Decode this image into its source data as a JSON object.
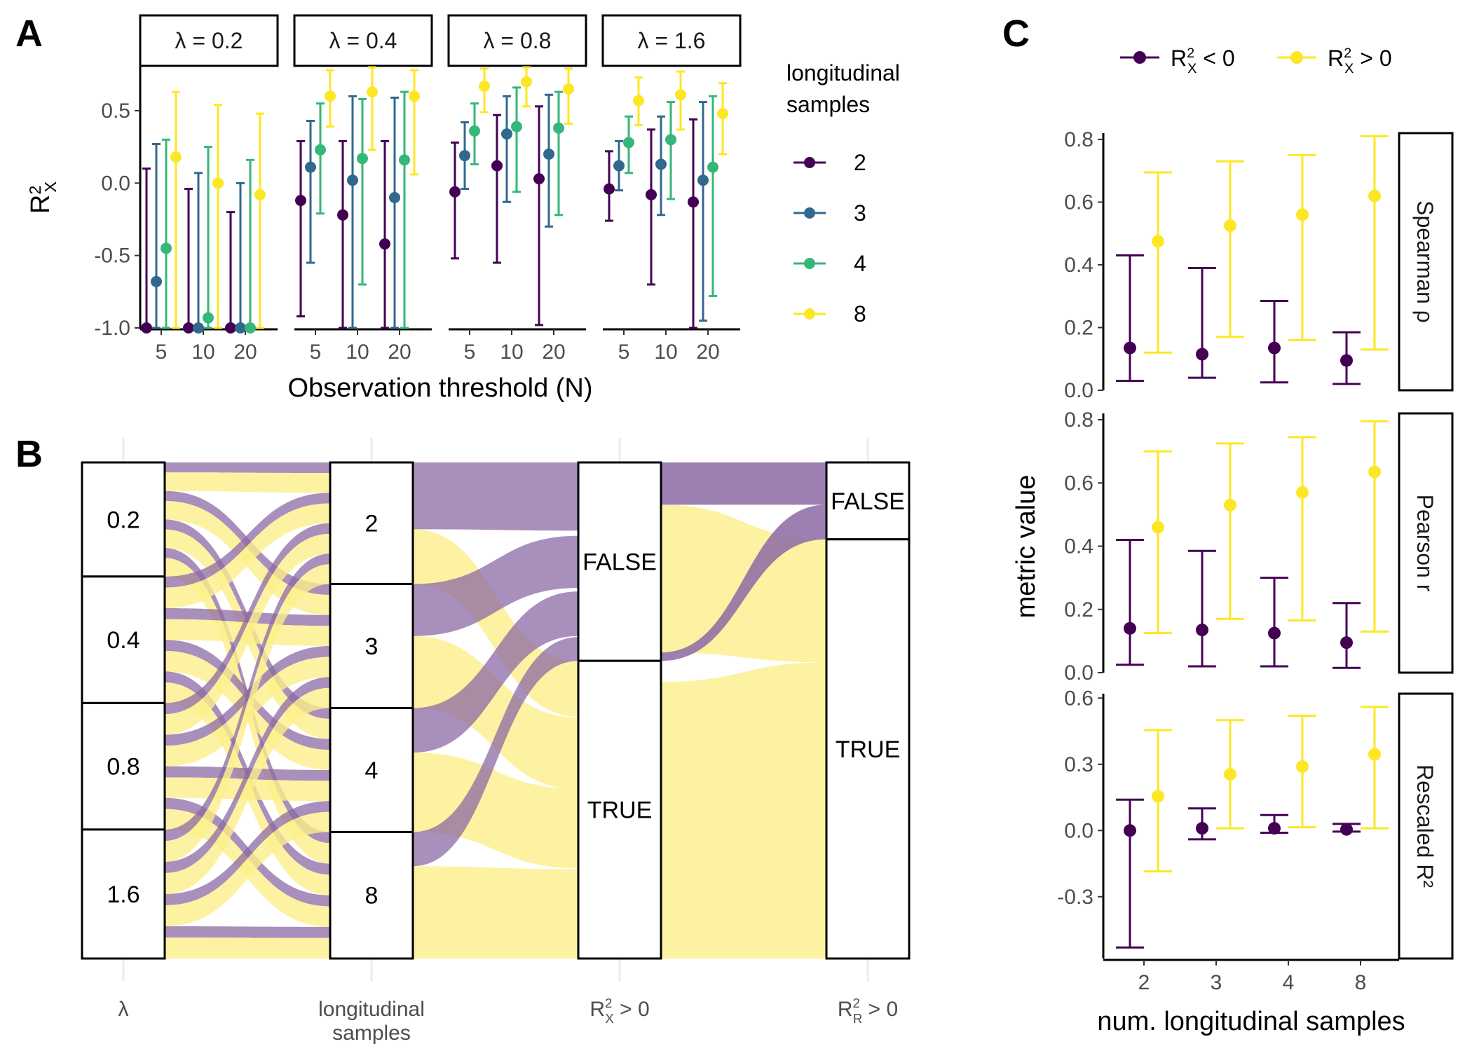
{
  "colors": {
    "n2": "#440154",
    "n3": "#31688e",
    "n4": "#35b779",
    "n8": "#fde725",
    "neg": "#440154",
    "pos": "#fde725",
    "flow_false": "#8c6aa4",
    "flow_true": "#fdef8a"
  },
  "panel_letters": {
    "a": "A",
    "b": "B",
    "c": "C"
  },
  "chart_data": [
    {
      "type": "scatter",
      "panel": "A",
      "facets": [
        "λ = 0.2",
        "λ = 0.4",
        "λ = 0.8",
        "λ = 1.6"
      ],
      "x_categories": [
        "5",
        "10",
        "20"
      ],
      "xlabel": "Observation threshold (N)",
      "ylabel": "R²_X",
      "ylim": [
        -1.0,
        0.8
      ],
      "yticks": [
        -1.0,
        -0.5,
        0.0,
        0.5
      ],
      "ytick_labels": [
        "-1.0",
        "-0.5",
        "0.0",
        "0.5"
      ],
      "legend": {
        "title_line1": "longitudinal",
        "title_line2": "samples",
        "position": "right"
      },
      "series": [
        {
          "name": "2",
          "color_key": "n2",
          "points": [
            {
              "facet": 0,
              "x": 0,
              "y": -1.0,
              "lo": -1.0,
              "hi": 0.1
            },
            {
              "facet": 0,
              "x": 1,
              "y": -1.0,
              "lo": -1.0,
              "hi": -0.04
            },
            {
              "facet": 0,
              "x": 2,
              "y": -1.0,
              "lo": -1.0,
              "hi": -0.2
            },
            {
              "facet": 1,
              "x": 0,
              "y": -0.12,
              "lo": -0.92,
              "hi": 0.29
            },
            {
              "facet": 1,
              "x": 1,
              "y": -0.22,
              "lo": -1.0,
              "hi": 0.29
            },
            {
              "facet": 1,
              "x": 2,
              "y": -0.42,
              "lo": -1.0,
              "hi": 0.29
            },
            {
              "facet": 2,
              "x": 0,
              "y": -0.06,
              "lo": -0.52,
              "hi": 0.28
            },
            {
              "facet": 2,
              "x": 1,
              "y": 0.12,
              "lo": -0.55,
              "hi": 0.47
            },
            {
              "facet": 2,
              "x": 2,
              "y": 0.03,
              "lo": -0.98,
              "hi": 0.53
            },
            {
              "facet": 3,
              "x": 0,
              "y": -0.04,
              "lo": -0.26,
              "hi": 0.22
            },
            {
              "facet": 3,
              "x": 1,
              "y": -0.08,
              "lo": -0.7,
              "hi": 0.37
            },
            {
              "facet": 3,
              "x": 2,
              "y": -0.13,
              "lo": -1.0,
              "hi": 0.44
            }
          ]
        },
        {
          "name": "3",
          "color_key": "n3",
          "points": [
            {
              "facet": 0,
              "x": 0,
              "y": -0.68,
              "lo": -1.0,
              "hi": 0.27
            },
            {
              "facet": 0,
              "x": 1,
              "y": -1.0,
              "lo": -1.0,
              "hi": 0.07
            },
            {
              "facet": 0,
              "x": 2,
              "y": -1.0,
              "lo": -1.0,
              "hi": 0.0
            },
            {
              "facet": 1,
              "x": 0,
              "y": 0.11,
              "lo": -0.55,
              "hi": 0.43
            },
            {
              "facet": 1,
              "x": 1,
              "y": 0.02,
              "lo": -1.0,
              "hi": 0.6
            },
            {
              "facet": 1,
              "x": 2,
              "y": -0.1,
              "lo": -1.0,
              "hi": 0.59
            },
            {
              "facet": 2,
              "x": 0,
              "y": 0.19,
              "lo": -0.04,
              "hi": 0.42
            },
            {
              "facet": 2,
              "x": 1,
              "y": 0.34,
              "lo": -0.13,
              "hi": 0.6
            },
            {
              "facet": 2,
              "x": 2,
              "y": 0.2,
              "lo": -0.3,
              "hi": 0.61
            },
            {
              "facet": 3,
              "x": 0,
              "y": 0.12,
              "lo": -0.05,
              "hi": 0.29
            },
            {
              "facet": 3,
              "x": 1,
              "y": 0.13,
              "lo": -0.22,
              "hi": 0.46
            },
            {
              "facet": 3,
              "x": 2,
              "y": 0.02,
              "lo": -0.95,
              "hi": 0.56
            }
          ]
        },
        {
          "name": "4",
          "color_key": "n4",
          "points": [
            {
              "facet": 0,
              "x": 0,
              "y": -0.45,
              "lo": -1.0,
              "hi": 0.3
            },
            {
              "facet": 0,
              "x": 1,
              "y": -0.93,
              "lo": -1.0,
              "hi": 0.25
            },
            {
              "facet": 0,
              "x": 2,
              "y": -1.0,
              "lo": -1.0,
              "hi": 0.16
            },
            {
              "facet": 1,
              "x": 0,
              "y": 0.23,
              "lo": -0.21,
              "hi": 0.55
            },
            {
              "facet": 1,
              "x": 1,
              "y": 0.17,
              "lo": -0.7,
              "hi": 0.58
            },
            {
              "facet": 1,
              "x": 2,
              "y": 0.16,
              "lo": -1.0,
              "hi": 0.63
            },
            {
              "facet": 2,
              "x": 0,
              "y": 0.36,
              "lo": 0.13,
              "hi": 0.55
            },
            {
              "facet": 2,
              "x": 1,
              "y": 0.39,
              "lo": -0.06,
              "hi": 0.66
            },
            {
              "facet": 2,
              "x": 2,
              "y": 0.38,
              "lo": -0.22,
              "hi": 0.63
            },
            {
              "facet": 3,
              "x": 0,
              "y": 0.28,
              "lo": 0.07,
              "hi": 0.46
            },
            {
              "facet": 3,
              "x": 1,
              "y": 0.3,
              "lo": -0.11,
              "hi": 0.56
            },
            {
              "facet": 3,
              "x": 2,
              "y": 0.11,
              "lo": -0.78,
              "hi": 0.6
            }
          ]
        },
        {
          "name": "8",
          "color_key": "n8",
          "points": [
            {
              "facet": 0,
              "x": 0,
              "y": 0.18,
              "lo": -1.0,
              "hi": 0.63
            },
            {
              "facet": 0,
              "x": 1,
              "y": 0.0,
              "lo": -1.0,
              "hi": 0.54
            },
            {
              "facet": 0,
              "x": 2,
              "y": -0.08,
              "lo": -1.0,
              "hi": 0.48
            },
            {
              "facet": 1,
              "x": 0,
              "y": 0.6,
              "lo": 0.39,
              "hi": 0.78
            },
            {
              "facet": 1,
              "x": 1,
              "y": 0.63,
              "lo": 0.23,
              "hi": 0.8
            },
            {
              "facet": 1,
              "x": 2,
              "y": 0.6,
              "lo": 0.06,
              "hi": 0.78
            },
            {
              "facet": 2,
              "x": 0,
              "y": 0.67,
              "lo": 0.49,
              "hi": 0.79
            },
            {
              "facet": 2,
              "x": 1,
              "y": 0.7,
              "lo": 0.53,
              "hi": 0.8
            },
            {
              "facet": 2,
              "x": 2,
              "y": 0.65,
              "lo": 0.41,
              "hi": 0.79
            },
            {
              "facet": 3,
              "x": 0,
              "y": 0.57,
              "lo": 0.4,
              "hi": 0.73
            },
            {
              "facet": 3,
              "x": 1,
              "y": 0.61,
              "lo": 0.37,
              "hi": 0.77
            },
            {
              "facet": 3,
              "x": 2,
              "y": 0.48,
              "lo": 0.2,
              "hi": 0.69
            }
          ]
        }
      ]
    },
    {
      "type": "alluvial",
      "panel": "B",
      "axes": [
        "λ",
        "longitudinal samples",
        "R²_X > 0",
        "R²_R > 0"
      ],
      "axis_label_line1": [
        "λ",
        "longitudinal",
        "R²_X > 0",
        "R²_R > 0"
      ],
      "axis_label_line2": [
        "",
        "samples",
        "",
        ""
      ],
      "strata": [
        [
          {
            "label": "0.2",
            "share": 0.23
          },
          {
            "label": "0.4",
            "share": 0.255
          },
          {
            "label": "0.8",
            "share": 0.255
          },
          {
            "label": "1.6",
            "share": 0.26
          }
        ],
        [
          {
            "label": "2",
            "share": 0.245
          },
          {
            "label": "3",
            "share": 0.25
          },
          {
            "label": "4",
            "share": 0.25
          },
          {
            "label": "8",
            "share": 0.255
          }
        ],
        [
          {
            "label": "FALSE",
            "share": 0.4
          },
          {
            "label": "TRUE",
            "share": 0.6
          }
        ],
        [
          {
            "label": "FALSE",
            "share": 0.155
          },
          {
            "label": "TRUE",
            "share": 0.845
          }
        ]
      ],
      "fill_variable": "R²_X > 0",
      "fill_false_color_key": "flow_false",
      "fill_true_color_key": "flow_true"
    },
    {
      "type": "scatter",
      "panel": "C",
      "xlabel": "num. longitudinal samples",
      "ylabel": "metric value",
      "categories": [
        "2",
        "3",
        "4",
        "8"
      ],
      "legend": {
        "position": "top",
        "items": [
          {
            "label": "R²_X < 0",
            "color_key": "neg"
          },
          {
            "label": "R²_X > 0",
            "color_key": "pos"
          }
        ]
      },
      "facets": [
        {
          "strip": "Spearman ρ",
          "ylim": [
            0.0,
            0.82
          ],
          "yticks": [
            0.0,
            0.2,
            0.4,
            0.6,
            0.8
          ],
          "ytick_labels": [
            "0.0",
            "0.2",
            "0.4",
            "0.6",
            "0.8"
          ],
          "series": [
            {
              "name": "R²_X < 0",
              "color_key": "neg",
              "values": [
                {
                  "y": 0.135,
                  "lo": 0.03,
                  "hi": 0.43
                },
                {
                  "y": 0.115,
                  "lo": 0.04,
                  "hi": 0.39
                },
                {
                  "y": 0.135,
                  "lo": 0.025,
                  "hi": 0.285
                },
                {
                  "y": 0.095,
                  "lo": 0.02,
                  "hi": 0.185
                }
              ]
            },
            {
              "name": "R²_X > 0",
              "color_key": "pos",
              "values": [
                {
                  "y": 0.475,
                  "lo": 0.12,
                  "hi": 0.695
                },
                {
                  "y": 0.525,
                  "lo": 0.17,
                  "hi": 0.73
                },
                {
                  "y": 0.56,
                  "lo": 0.16,
                  "hi": 0.75
                },
                {
                  "y": 0.62,
                  "lo": 0.13,
                  "hi": 0.81
                }
              ]
            }
          ]
        },
        {
          "strip": "Pearson r",
          "ylim": [
            0.0,
            0.82
          ],
          "yticks": [
            0.0,
            0.2,
            0.4,
            0.6,
            0.8
          ],
          "ytick_labels": [
            "0.0",
            "0.2",
            "0.4",
            "0.6",
            "0.8"
          ],
          "series": [
            {
              "name": "R²_X < 0",
              "color_key": "neg",
              "values": [
                {
                  "y": 0.14,
                  "lo": 0.025,
                  "hi": 0.42
                },
                {
                  "y": 0.135,
                  "lo": 0.02,
                  "hi": 0.385
                },
                {
                  "y": 0.125,
                  "lo": 0.02,
                  "hi": 0.3
                },
                {
                  "y": 0.095,
                  "lo": 0.015,
                  "hi": 0.22
                }
              ]
            },
            {
              "name": "R²_X > 0",
              "color_key": "pos",
              "values": [
                {
                  "y": 0.46,
                  "lo": 0.125,
                  "hi": 0.7
                },
                {
                  "y": 0.53,
                  "lo": 0.17,
                  "hi": 0.725
                },
                {
                  "y": 0.57,
                  "lo": 0.165,
                  "hi": 0.745
                },
                {
                  "y": 0.635,
                  "lo": 0.13,
                  "hi": 0.795
                }
              ]
            }
          ]
        },
        {
          "strip": "Rescaled R²",
          "ylim": [
            -0.58,
            0.62
          ],
          "yticks": [
            -0.3,
            0.0,
            0.3,
            0.6
          ],
          "ytick_labels": [
            "-0.3",
            "0.0",
            "0.3",
            "0.6"
          ],
          "series": [
            {
              "name": "R²_X < 0",
              "color_key": "neg",
              "values": [
                {
                  "y": 0.0,
                  "lo": -0.53,
                  "hi": 0.14
                },
                {
                  "y": 0.01,
                  "lo": -0.04,
                  "hi": 0.1
                },
                {
                  "y": 0.01,
                  "lo": -0.01,
                  "hi": 0.07
                },
                {
                  "y": 0.005,
                  "lo": -0.005,
                  "hi": 0.03
                }
              ]
            },
            {
              "name": "R²_X > 0",
              "color_key": "pos",
              "values": [
                {
                  "y": 0.155,
                  "lo": -0.185,
                  "hi": 0.455
                },
                {
                  "y": 0.255,
                  "lo": 0.01,
                  "hi": 0.5
                },
                {
                  "y": 0.29,
                  "lo": 0.015,
                  "hi": 0.52
                },
                {
                  "y": 0.345,
                  "lo": 0.01,
                  "hi": 0.56
                }
              ]
            }
          ]
        }
      ]
    }
  ]
}
